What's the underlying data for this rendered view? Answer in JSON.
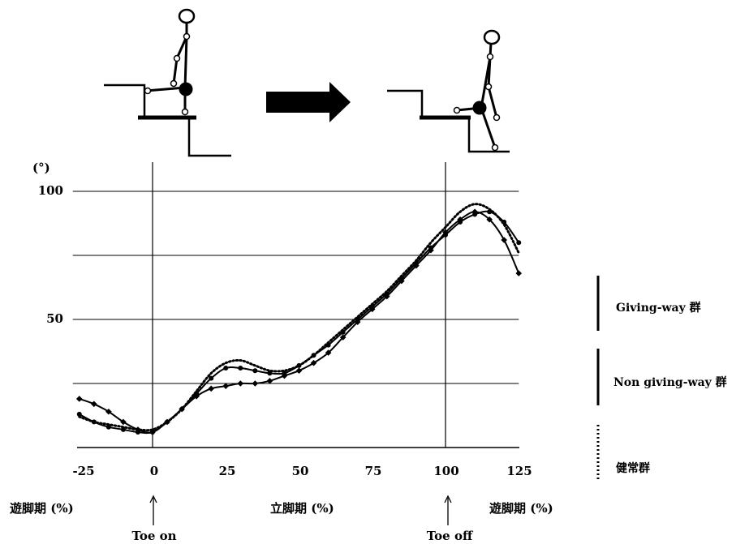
{
  "chart_data": {
    "type": "line",
    "title": "",
    "xlabel": "",
    "ylabel": "(°)",
    "xlim": [
      -25,
      125
    ],
    "ylim": [
      0,
      100
    ],
    "grid": true,
    "legend_position": "right",
    "x_ticks": [
      "-25",
      "0",
      "25",
      "50",
      "75",
      "100",
      "125"
    ],
    "y_ticks": [
      "100",
      "50"
    ],
    "x": [
      -25,
      -20,
      -15,
      -10,
      -5,
      0,
      5,
      10,
      15,
      20,
      25,
      30,
      35,
      40,
      45,
      50,
      55,
      60,
      65,
      70,
      75,
      80,
      85,
      90,
      95,
      100,
      105,
      110,
      115,
      120,
      125
    ],
    "series": [
      {
        "name": "Giving-way 群",
        "style": "solid",
        "marker": "diamond",
        "values": [
          19,
          17,
          14,
          10,
          7,
          6,
          10,
          15,
          20,
          23,
          24,
          25,
          25,
          26,
          28,
          30,
          33,
          37,
          43,
          49,
          54,
          59,
          65,
          71,
          77,
          84,
          89,
          92,
          89,
          81,
          68
        ]
      },
      {
        "name": "Non giving-way 群",
        "style": "solid",
        "marker": "circle",
        "values": [
          13,
          10,
          8,
          7,
          6,
          6,
          10,
          15,
          21,
          27,
          31,
          31,
          30,
          29,
          29,
          32,
          36,
          40,
          45,
          50,
          55,
          60,
          66,
          72,
          78,
          83,
          88,
          91,
          92,
          88,
          80
        ]
      },
      {
        "name": "健常群",
        "style": "dotted",
        "marker": "none",
        "values": [
          12,
          10,
          9,
          8,
          7,
          7,
          10,
          15,
          22,
          29,
          33,
          34,
          32,
          30,
          30,
          32,
          36,
          41,
          46,
          51,
          56,
          61,
          67,
          73,
          80,
          86,
          92,
          95,
          93,
          87,
          76
        ]
      }
    ],
    "reference_lines": [
      {
        "x": 0,
        "label": "Toe on"
      },
      {
        "x": 100,
        "label": "Toe off"
      }
    ],
    "phase_labels": [
      "遊脚期 (%)",
      "立脚期 (%)",
      "遊脚期 (%)"
    ]
  }
}
